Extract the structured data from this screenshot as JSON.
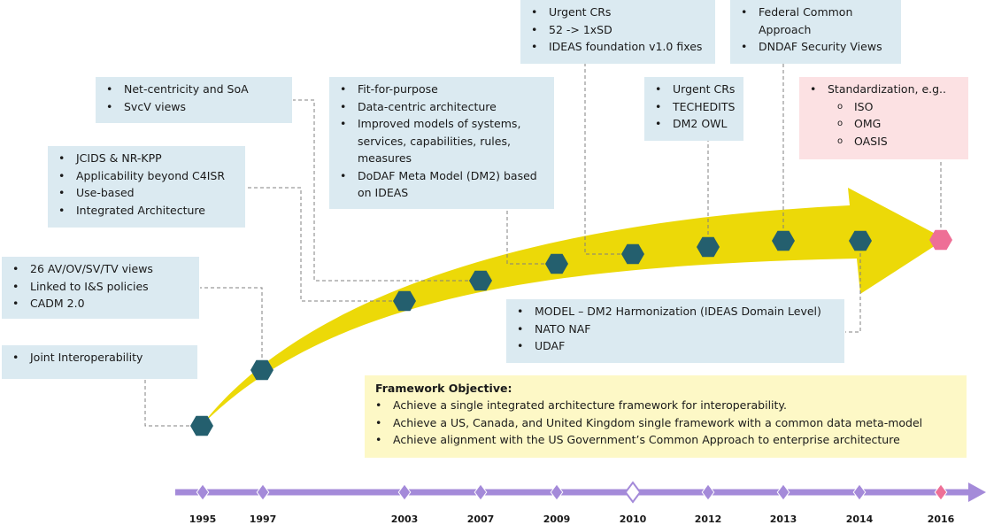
{
  "colors": {
    "box_blue": "#dbeaf1",
    "box_pink": "#fce1e3",
    "box_yellow": "#fdf8c6",
    "arrow_yellow": "#ecd908",
    "hexagon_teal": "#245f6e",
    "hexagon_pink": "#ee6f96",
    "timeline_purple": "#a48ad9"
  },
  "boxes": {
    "y1995": {
      "items": [
        "Joint Interoperability"
      ]
    },
    "y1997": {
      "items": [
        "26 AV/OV/SV/TV views",
        "Linked to I&S policies",
        "CADM 2.0"
      ]
    },
    "y2003": {
      "items": [
        "JCIDS & NR-KPP",
        "Applicability beyond C4ISR",
        "Use-based",
        "Integrated Architecture"
      ]
    },
    "y2007": {
      "items": [
        "Net-centricity and SoA",
        "SvcV views"
      ]
    },
    "y2009": {
      "items": [
        "Fit-for-purpose",
        "Data-centric architecture",
        "Improved models of systems, services, capabilities, rules, measures",
        "DoDAF Meta Model (DM2) based on IDEAS"
      ]
    },
    "y2010": {
      "items": [
        "Urgent CRs",
        "52 -> 1xSD",
        "IDEAS foundation v1.0 fixes"
      ]
    },
    "y2012": {
      "items": [
        "Urgent CRs",
        "TECHEDITS",
        "DM2 OWL"
      ]
    },
    "y2013": {
      "items": [
        "Federal Common Approach",
        "DNDAF Security Views"
      ]
    },
    "y2014": {
      "items": [
        "MODEL – DM2 Harmonization (IDEAS Domain Level)",
        "NATO NAF",
        "UDAF"
      ]
    },
    "y2016": {
      "items": [
        "Standardization, e.g..",
        "ISO",
        "OMG",
        "OASIS"
      ]
    }
  },
  "objective": {
    "title": "Framework Objective:",
    "items": [
      "Achieve a single integrated architecture framework for interoperability.",
      "Achieve a US, Canada, and United Kingdom single framework with a common data meta-model",
      "Achieve alignment with the US Government’s Common Approach to enterprise architecture"
    ]
  },
  "timeline": {
    "years": [
      "1995",
      "1997",
      "2003",
      "2007",
      "2009",
      "2010",
      "2012",
      "2013",
      "2014",
      "2016"
    ]
  }
}
